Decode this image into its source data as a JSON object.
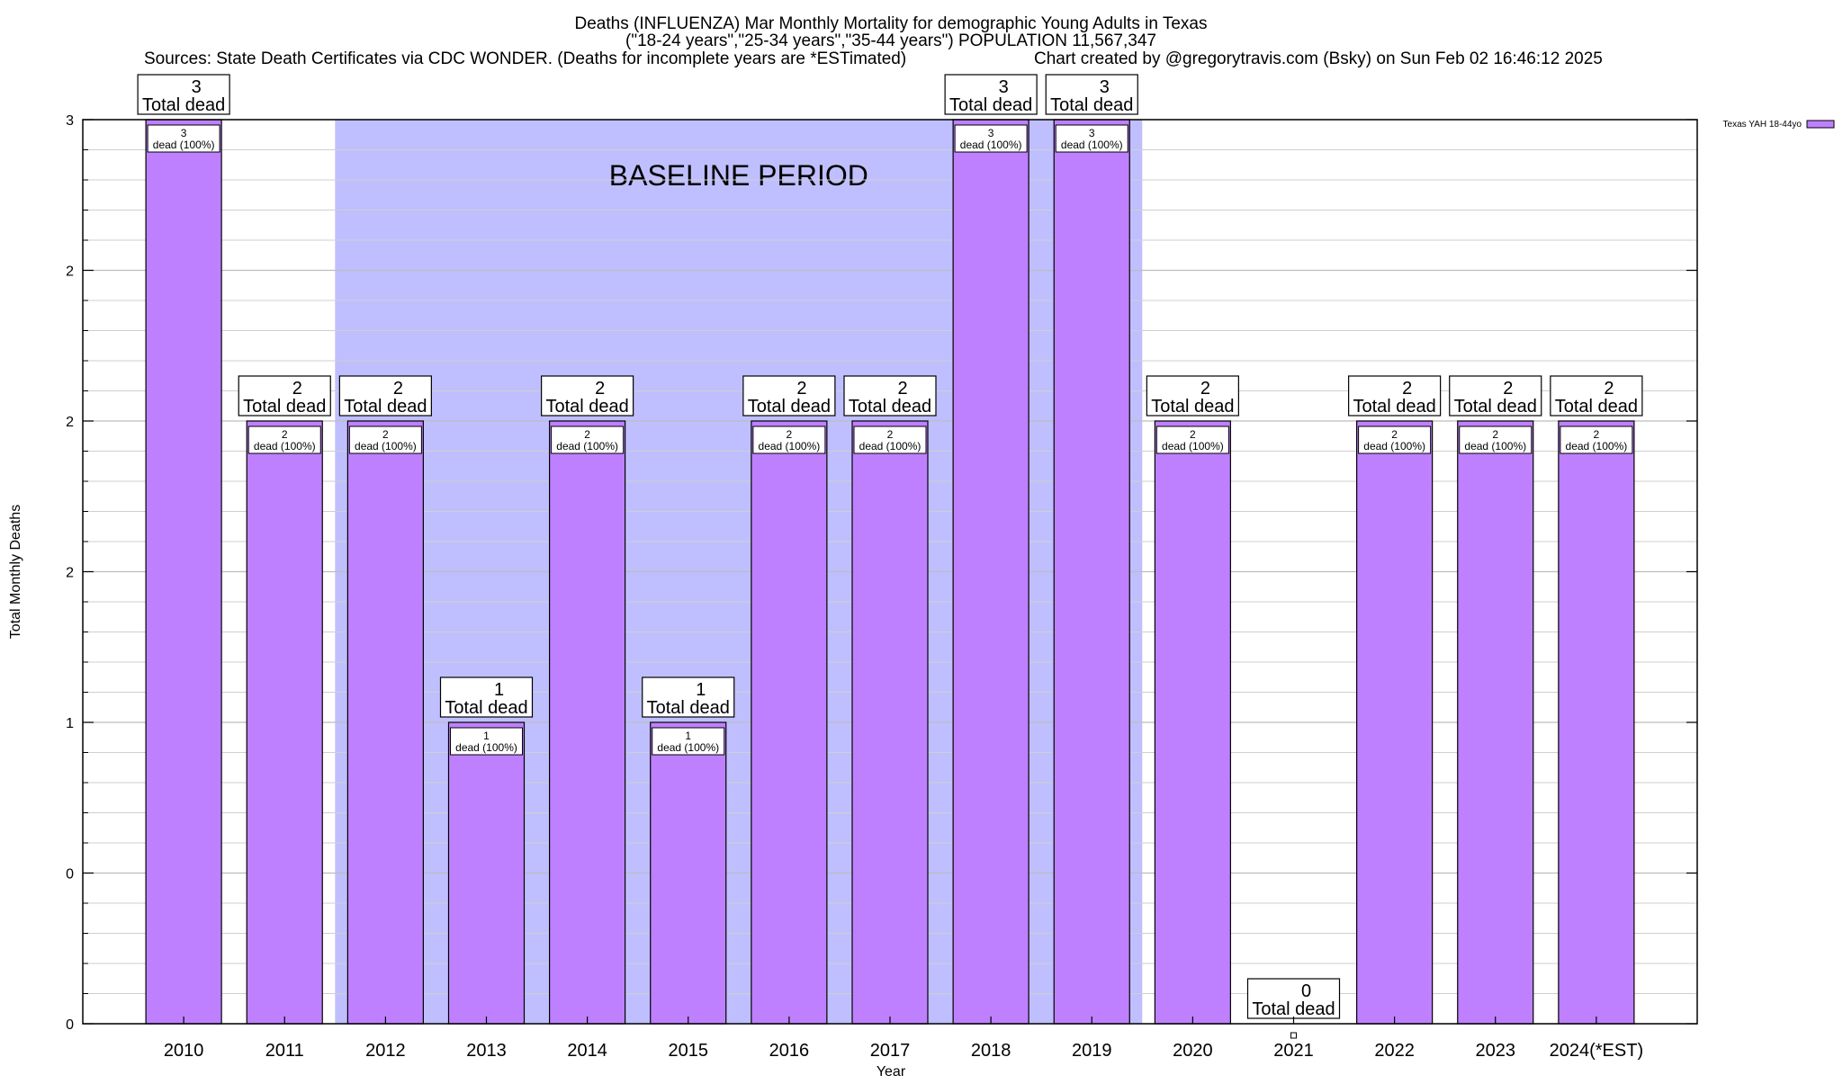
{
  "chart_data": {
    "type": "bar",
    "title_lines": [
      "Deaths (INFLUENZA) Mar Monthly Mortality for demographic Young Adults in Texas",
      "(\"18-24 years\",\"25-34 years\",\"35-44 years\") POPULATION 11,567,347"
    ],
    "sources": "Sources: State Death Certificates via CDC WONDER. (Deaths for incomplete years are *ESTimated)",
    "credit": "Chart created by @gregorytravis.com (Bsky) on Sun Feb 02 16:46:12 2025",
    "xlabel": "Year",
    "ylabel": "Total Monthly Deaths",
    "ylim": [
      0,
      3
    ],
    "ytick_labels": [
      "0",
      "0",
      "1",
      "2",
      "2",
      "2",
      "3"
    ],
    "categories": [
      "2010",
      "2011",
      "2012",
      "2013",
      "2014",
      "2015",
      "2016",
      "2017",
      "2018",
      "2019",
      "2020",
      "2021",
      "2022",
      "2023",
      "2024(*EST)"
    ],
    "series": [
      {
        "name": "Texas YAH 18-44yo",
        "color": "#bf80ff",
        "values": [
          3,
          2,
          2,
          1,
          2,
          1,
          2,
          2,
          3,
          3,
          2,
          0,
          2,
          2,
          2
        ]
      }
    ],
    "total_label_suffix": "Total dead",
    "bar_label_suffix": "dead (100%)",
    "baseline": {
      "label": "BASELINE PERIOD",
      "start": "2012",
      "end": "2019",
      "color": "#bfbfff"
    },
    "grid": true,
    "legend_position": "top-right"
  }
}
